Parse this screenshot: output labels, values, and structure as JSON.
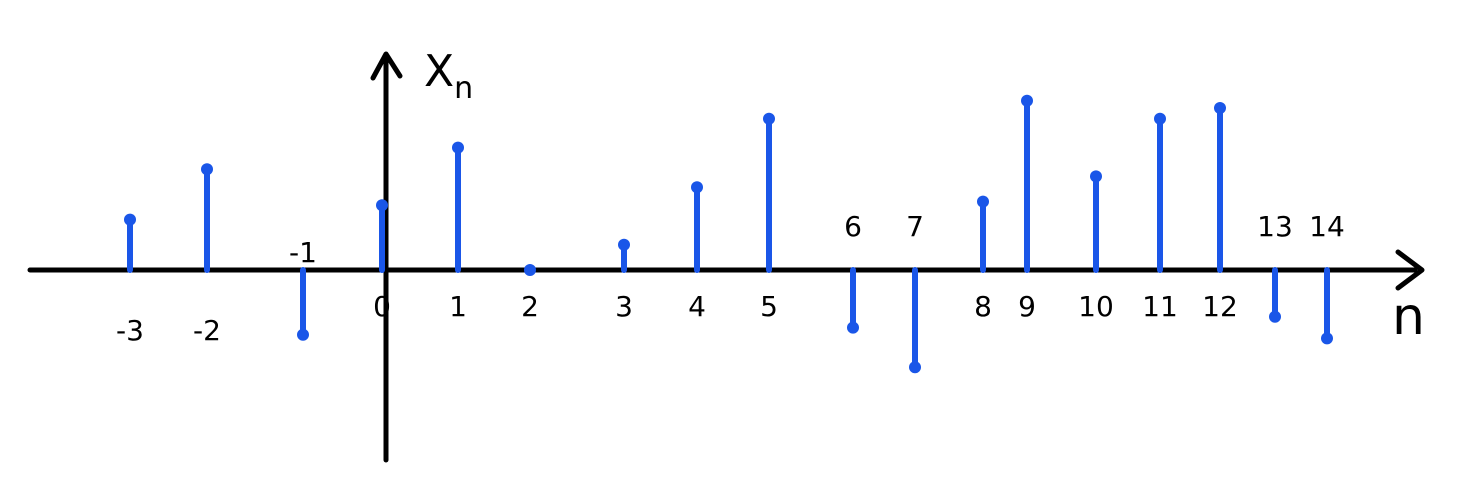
{
  "chart_data": {
    "type": "stem",
    "title": "",
    "ylabel": "X",
    "ylabel_subscript": "n",
    "xlabel": "n",
    "x": [
      -3,
      -2,
      -1,
      0,
      1,
      2,
      3,
      4,
      5,
      6,
      7,
      8,
      9,
      10,
      11,
      12,
      13,
      14
    ],
    "values": [
      1.4,
      2.8,
      -1.8,
      1.8,
      3.4,
      0,
      0.7,
      2.3,
      4.2,
      -1.6,
      -2.7,
      1.9,
      4.7,
      2.6,
      4.2,
      4.5,
      -1.3,
      -1.9
    ],
    "tick_labels": [
      "-3",
      "-2",
      "-1",
      "0",
      "1",
      "2",
      "3",
      "4",
      "5",
      "6",
      "7",
      "8",
      "9",
      "10",
      "11",
      "12",
      "13",
      "14"
    ],
    "ylim": [
      -3,
      5
    ],
    "grid": false,
    "colors": {
      "stem": "#1a56e8",
      "axis": "#000000"
    }
  }
}
